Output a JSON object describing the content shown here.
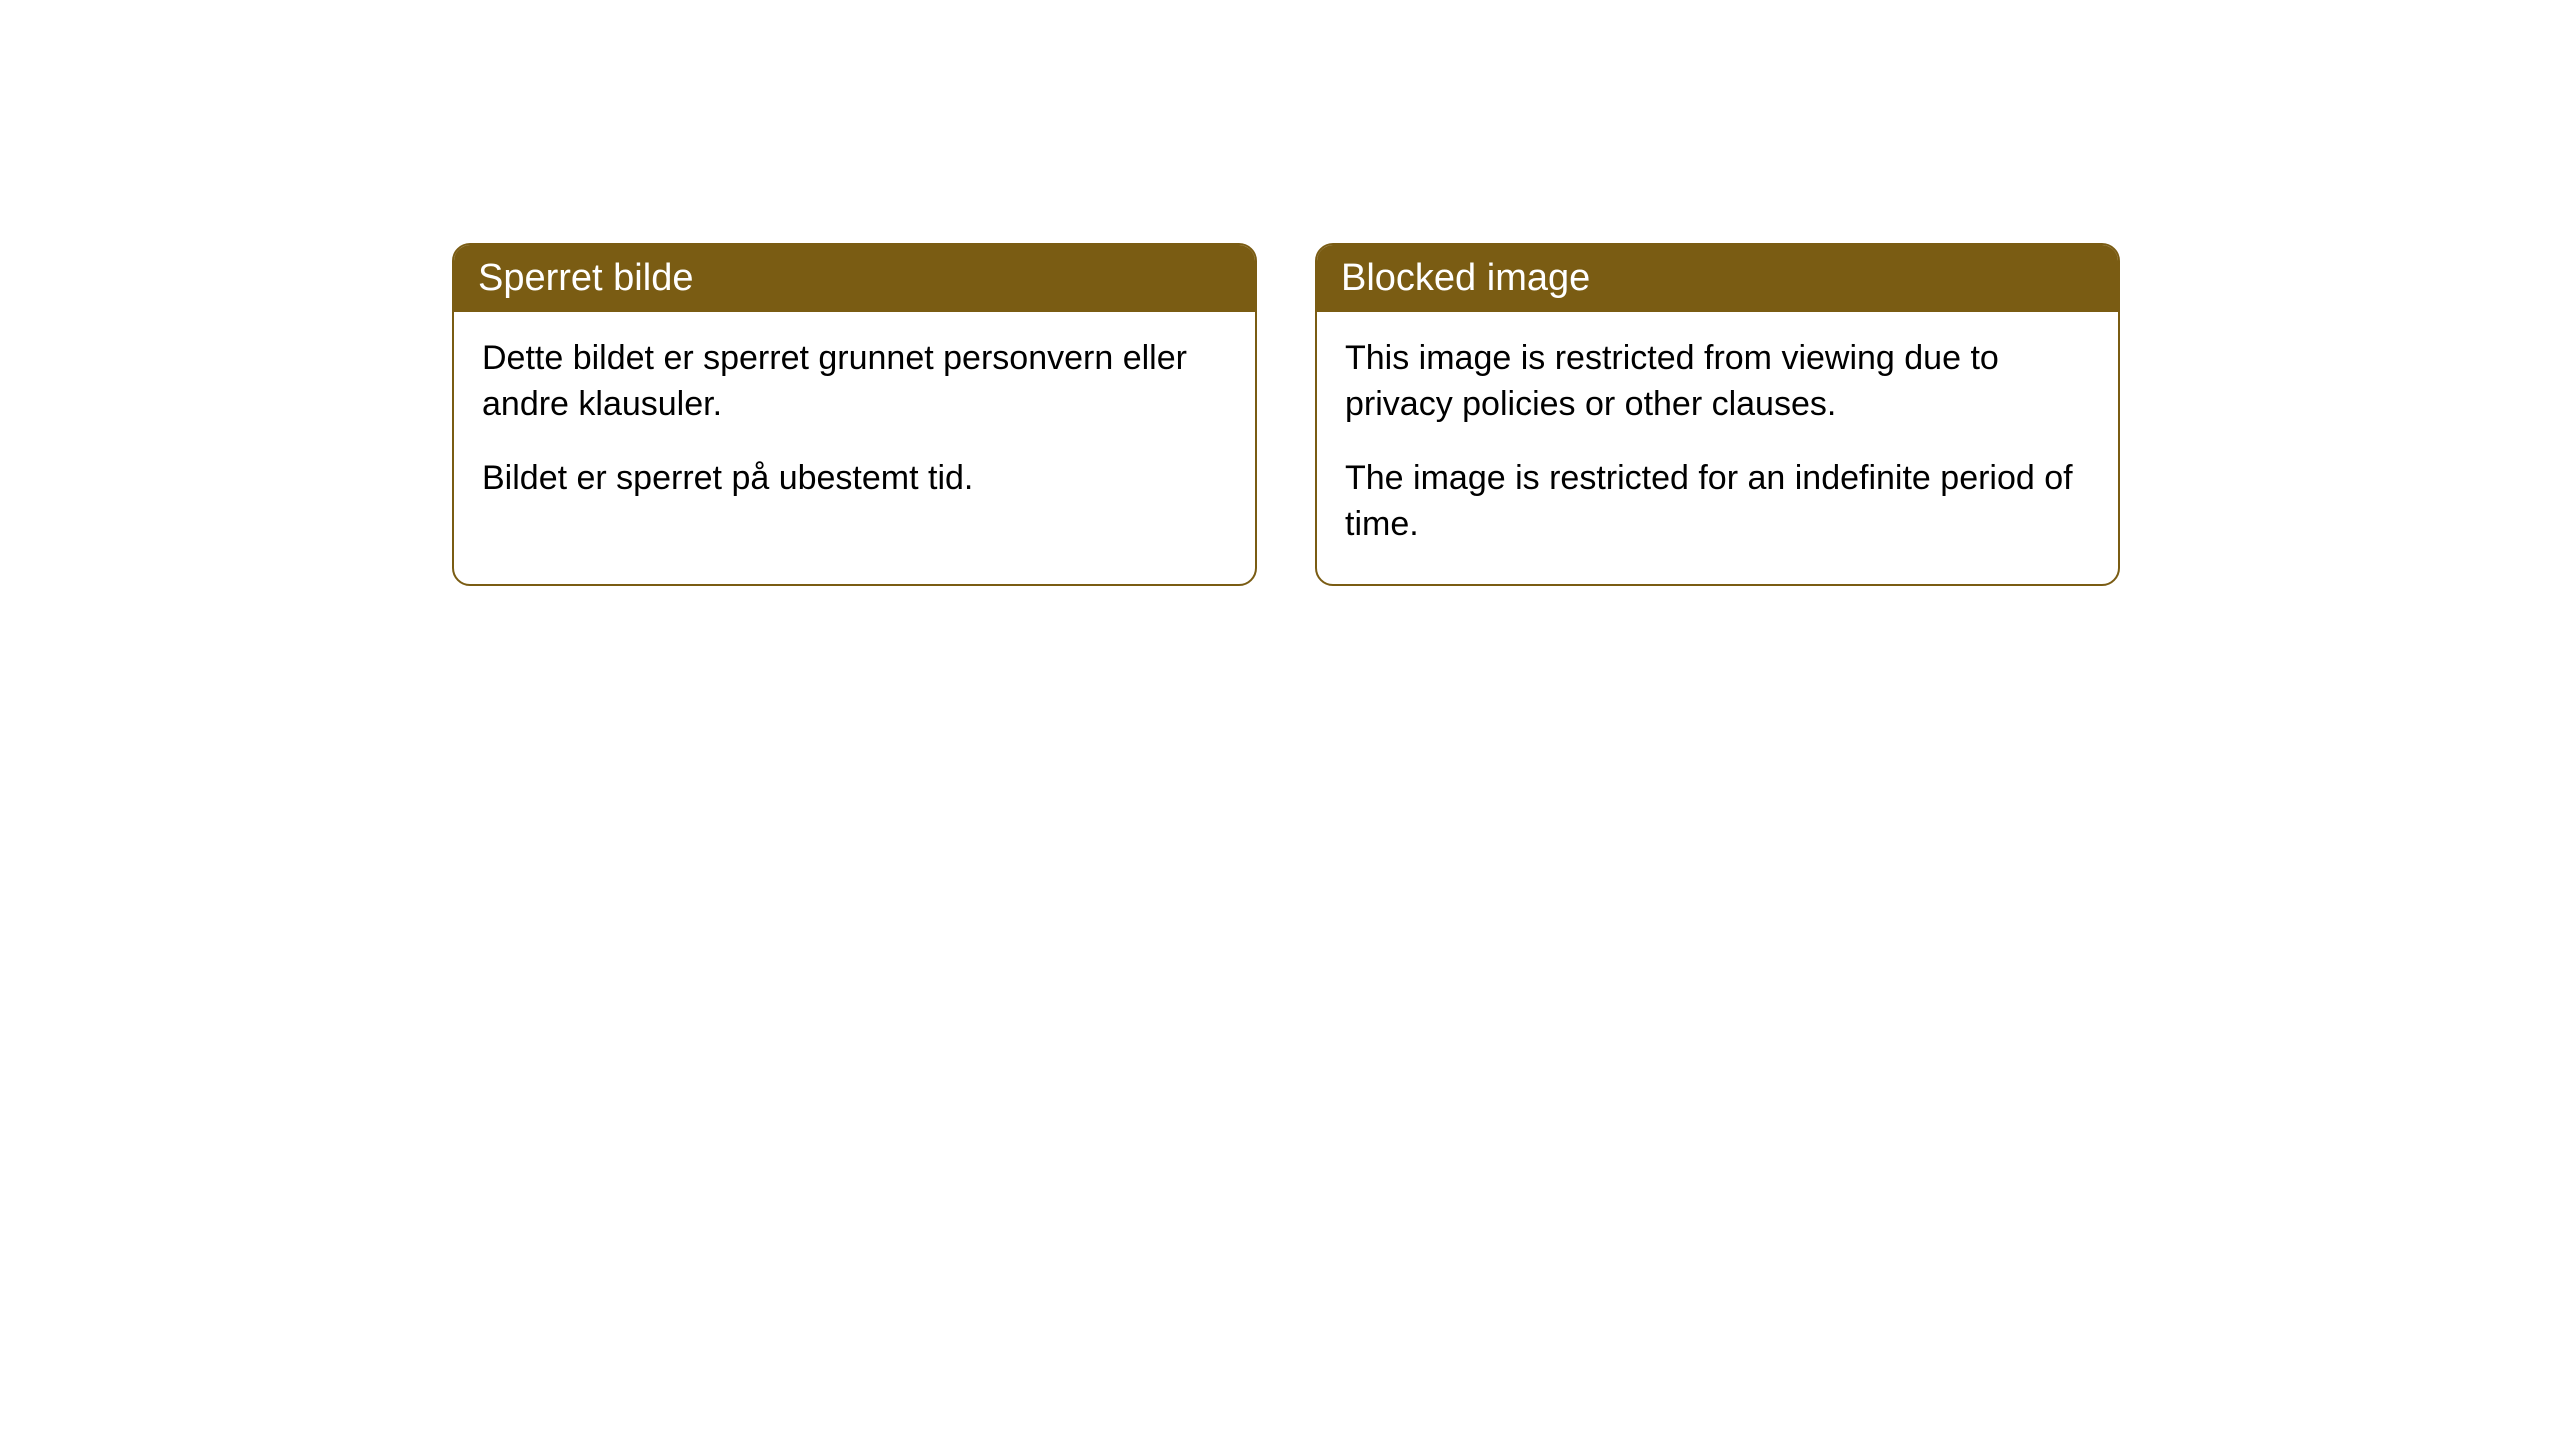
{
  "cards": [
    {
      "title": "Sperret bilde",
      "paragraph1": "Dette bildet er sperret grunnet personvern eller andre klausuler.",
      "paragraph2": "Bildet er sperret på ubestemt tid."
    },
    {
      "title": "Blocked image",
      "paragraph1": "This image is restricted from viewing due to privacy policies or other clauses.",
      "paragraph2": "The image is restricted for an indefinite period of time."
    }
  ],
  "styling": {
    "header_background_color": "#7a5c13",
    "header_text_color": "#ffffff",
    "border_color": "#7a5c13",
    "body_background_color": "#ffffff",
    "body_text_color": "#000000",
    "border_radius": 18,
    "header_fontsize": 38,
    "body_fontsize": 34
  }
}
